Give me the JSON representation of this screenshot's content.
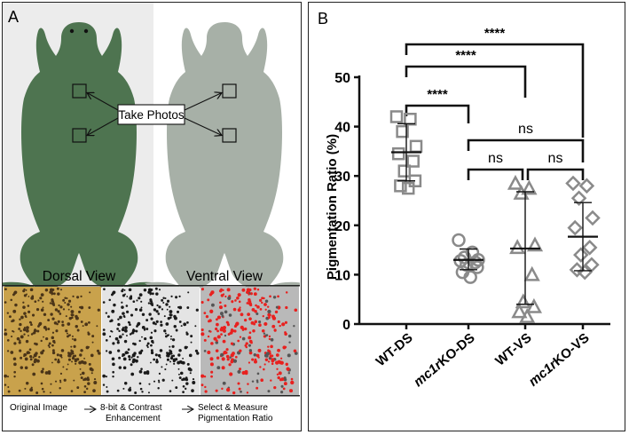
{
  "panel_a": {
    "label": "A",
    "callout": "Take Photos",
    "dorsal_label": "Dorsal View",
    "ventral_label": "Ventral View",
    "steps": {
      "step1": "Original Image",
      "step2_line1": "8-bit & Contrast",
      "step2_line2": "Enhancement",
      "step3_line1": "Select & Measure",
      "step3_line2": "Pigmentation Ratio"
    },
    "colors": {
      "dorsal": "#4e7450",
      "ventral": "#a7b0a7",
      "bg_left": "#ececec",
      "measure": "#e8211f"
    }
  },
  "panel_b": {
    "label": "B",
    "ylabel": "Pigmentation  Ratio (%)",
    "significance": [
      {
        "text": "****",
        "from": 0,
        "to": 3,
        "row": 0
      },
      {
        "text": "****",
        "from": 0,
        "to": 2,
        "row": 1
      },
      {
        "text": "****",
        "from": 0,
        "to": 1,
        "row": 2
      },
      {
        "text": "ns",
        "from": 1,
        "to": 3,
        "row": 3
      },
      {
        "text": "ns",
        "from": 1,
        "to": 2,
        "row": 4
      },
      {
        "text": "ns",
        "from": 2,
        "to": 3,
        "row": 4
      }
    ]
  },
  "chart_data": {
    "type": "scatter",
    "categories": [
      {
        "pre": "",
        "it": "",
        "post": "WT-DS"
      },
      {
        "pre": "",
        "it": "mc1r",
        "post": "KO-DS"
      },
      {
        "pre": "",
        "it": "",
        "post": "WT-VS"
      },
      {
        "pre": "",
        "it": "mc1r",
        "post": "KO-VS"
      }
    ],
    "ylim": [
      0,
      50
    ],
    "yticks": [
      "0",
      "10",
      "20",
      "30",
      "40",
      "50"
    ],
    "groups": [
      {
        "marker": "square",
        "mean": 34.8,
        "sd_low": 29.0,
        "sd_high": 40.6,
        "values": [
          42.0,
          41.5,
          39.0,
          36.0,
          34.5,
          33.0,
          31.0,
          29.0,
          28.0,
          27.5
        ]
      },
      {
        "marker": "circle",
        "mean": 13.0,
        "sd_low": 11.0,
        "sd_high": 15.2,
        "values": [
          17.0,
          14.5,
          13.5,
          13.0,
          12.8,
          12.5,
          12.0,
          11.5,
          10.5,
          9.5
        ]
      },
      {
        "marker": "triangle",
        "mean": 15.3,
        "sd_low": 4.0,
        "sd_high": 26.8,
        "values": [
          28.5,
          27.5,
          26.5,
          16.0,
          15.5,
          10.0,
          4.5,
          3.5,
          2.5,
          1.5
        ]
      },
      {
        "marker": "diamond",
        "mean": 17.7,
        "sd_low": 10.8,
        "sd_high": 24.6,
        "values": [
          28.5,
          28.0,
          25.5,
          21.5,
          19.5,
          15.5,
          14.0,
          12.0,
          11.0,
          10.5
        ]
      }
    ],
    "marker_color": "#8a8a8a"
  }
}
